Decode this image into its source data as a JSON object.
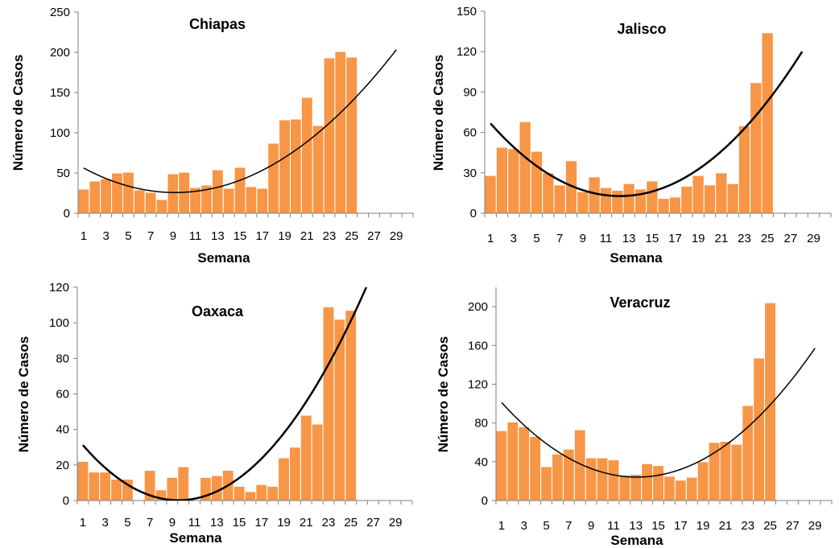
{
  "chart_data": [
    {
      "type": "bar",
      "title": "Chiapas",
      "xlabel": "Semana",
      "ylabel": "Número de Casos",
      "x_ticks": [
        "1",
        "3",
        "5",
        "7",
        "9",
        "11",
        "13",
        "15",
        "17",
        "19",
        "21",
        "23",
        "25",
        "27",
        "29"
      ],
      "y_ticks": [
        "0",
        "50",
        "100",
        "150",
        "200",
        "250"
      ],
      "xlim": [
        0.5,
        30.5
      ],
      "ylim": [
        0,
        250
      ],
      "bar_color": "#f79646",
      "grid": false,
      "legend": "none",
      "x": [
        1,
        2,
        3,
        4,
        5,
        6,
        7,
        8,
        9,
        10,
        11,
        12,
        13,
        14,
        15,
        16,
        17,
        18,
        19,
        20,
        21,
        22,
        23,
        24,
        25
      ],
      "values": [
        30,
        40,
        43,
        50,
        51,
        29,
        26,
        17,
        49,
        51,
        32,
        35,
        54,
        31,
        57,
        33,
        31,
        87,
        116,
        117,
        144,
        109,
        193,
        201,
        194
      ],
      "trend": {
        "type": "polynomial",
        "order": 2,
        "points": [
          [
            1,
            56
          ],
          [
            5,
            34
          ],
          [
            9,
            26
          ],
          [
            13,
            32
          ],
          [
            17,
            53
          ],
          [
            21,
            89
          ],
          [
            25,
            139
          ],
          [
            29,
            203
          ]
        ]
      }
    },
    {
      "type": "bar",
      "title": "Jalisco",
      "xlabel": "Semana",
      "ylabel": "Número de Casos",
      "x_ticks": [
        "1",
        "3",
        "5",
        "7",
        "9",
        "11",
        "13",
        "15",
        "17",
        "19",
        "21",
        "23",
        "25",
        "27",
        "29"
      ],
      "y_ticks": [
        "0",
        "30",
        "60",
        "90",
        "120",
        "150"
      ],
      "xlim": [
        0.5,
        30.5
      ],
      "ylim": [
        0,
        150
      ],
      "bar_color": "#f79646",
      "grid": false,
      "legend": "none",
      "x": [
        1,
        2,
        3,
        4,
        5,
        6,
        7,
        8,
        9,
        10,
        11,
        12,
        13,
        14,
        15,
        16,
        17,
        18,
        19,
        20,
        21,
        22,
        23,
        24,
        25
      ],
      "values": [
        28,
        49,
        48,
        68,
        46,
        30,
        21,
        39,
        16,
        27,
        19,
        17,
        22,
        18,
        24,
        11,
        12,
        20,
        28,
        21,
        30,
        22,
        65,
        97,
        134
      ],
      "trend": {
        "type": "polynomial",
        "order": 2,
        "points": [
          [
            1,
            65
          ],
          [
            4,
            43
          ],
          [
            8,
            22
          ],
          [
            12,
            13
          ],
          [
            16,
            18
          ],
          [
            20,
            38
          ],
          [
            24,
            72
          ],
          [
            28,
            121
          ]
        ]
      }
    },
    {
      "type": "bar",
      "title": "Oaxaca",
      "xlabel": "Semana",
      "ylabel": "Número de Casos",
      "x_ticks": [
        "1",
        "3",
        "5",
        "7",
        "9",
        "11",
        "13",
        "15",
        "17",
        "19",
        "21",
        "23",
        "25",
        "27",
        "29"
      ],
      "y_ticks": [
        "0",
        "20",
        "40",
        "60",
        "80",
        "100",
        "120"
      ],
      "xlim": [
        0.5,
        30.5
      ],
      "ylim": [
        0,
        120
      ],
      "bar_color": "#f79646",
      "grid": false,
      "legend": "none",
      "x": [
        1,
        2,
        3,
        4,
        5,
        6,
        7,
        8,
        9,
        10,
        11,
        12,
        13,
        14,
        15,
        16,
        17,
        18,
        19,
        20,
        21,
        22,
        23,
        24,
        25
      ],
      "values": [
        22,
        16,
        16,
        12,
        12,
        0,
        17,
        6,
        13,
        19,
        0,
        13,
        14,
        17,
        8,
        5,
        9,
        8,
        24,
        30,
        48,
        43,
        109,
        102,
        107
      ],
      "trend": {
        "type": "polynomial",
        "order": 2,
        "points": [
          [
            1,
            32
          ],
          [
            5,
            8
          ],
          [
            9,
            0
          ],
          [
            13,
            5
          ],
          [
            17,
            24
          ],
          [
            21,
            56
          ],
          [
            25,
            102
          ],
          [
            27,
            128
          ]
        ]
      }
    },
    {
      "type": "bar",
      "title": "Veracruz",
      "xlabel": "Semana",
      "ylabel": "Número de Casos",
      "x_ticks": [
        "1",
        "3",
        "5",
        "7",
        "9",
        "11",
        "13",
        "15",
        "17",
        "19",
        "21",
        "23",
        "25",
        "27",
        "29"
      ],
      "y_ticks": [
        "0",
        "40",
        "80",
        "120",
        "160",
        "200"
      ],
      "xlim": [
        0.5,
        30.5
      ],
      "ylim": [
        0,
        220
      ],
      "bar_color": "#f79646",
      "grid": false,
      "legend": "none",
      "x": [
        1,
        2,
        3,
        4,
        5,
        6,
        7,
        8,
        9,
        10,
        11,
        12,
        13,
        14,
        15,
        16,
        17,
        18,
        19,
        20,
        21,
        22,
        23,
        24,
        25
      ],
      "values": [
        72,
        81,
        76,
        66,
        35,
        48,
        53,
        73,
        44,
        44,
        42,
        26,
        27,
        38,
        36,
        25,
        21,
        24,
        40,
        60,
        61,
        58,
        98,
        147,
        204
      ],
      "trend": {
        "type": "polynomial",
        "order": 2,
        "points": [
          [
            1,
            101
          ],
          [
            5,
            59
          ],
          [
            9,
            33
          ],
          [
            13,
            24
          ],
          [
            17,
            32
          ],
          [
            21,
            57
          ],
          [
            25,
            99
          ],
          [
            29,
            157
          ]
        ]
      }
    }
  ]
}
